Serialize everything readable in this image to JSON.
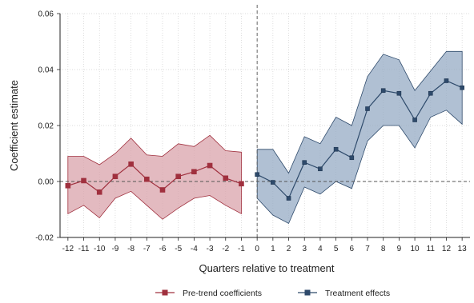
{
  "chart_data": {
    "type": "line",
    "title": "",
    "xlabel": "Quarters relative to treatment",
    "ylabel": "Coefficient estimate",
    "xlim": [
      -12.5,
      13.5
    ],
    "ylim": [
      -0.02,
      0.06
    ],
    "yticks": [
      "-0.02",
      "0.00",
      "0.02",
      "0.04",
      "0.06"
    ],
    "xticks": [
      "-12",
      "-11",
      "-10",
      "-9",
      "-8",
      "-7",
      "-6",
      "-5",
      "-4",
      "-3",
      "-2",
      "-1",
      "0",
      "1",
      "2",
      "3",
      "4",
      "5",
      "6",
      "7",
      "8",
      "9",
      "10",
      "11",
      "12",
      "13"
    ],
    "grid": true,
    "legend_position": "bottom",
    "reference_lines": {
      "vertical_x": 0,
      "horizontal_y": 0
    },
    "series": [
      {
        "name": "Pre-trend coefficients",
        "color": "#a0303e",
        "fill": "#d9a3ab",
        "marker": "square",
        "x": [
          -12,
          -11,
          -10,
          -9,
          -8,
          -7,
          -6,
          -5,
          -4,
          -3,
          -2,
          -1
        ],
        "y": [
          -0.0015,
          0.0003,
          -0.0038,
          0.0018,
          0.0062,
          0.0008,
          -0.003,
          0.0018,
          0.0035,
          0.0057,
          0.0012,
          -0.0008
        ],
        "ci_upper": [
          0.009,
          0.009,
          0.006,
          0.01,
          0.0155,
          0.0095,
          0.009,
          0.0135,
          0.0125,
          0.0165,
          0.011,
          0.0105
        ],
        "ci_lower": [
          -0.0115,
          -0.0085,
          -0.013,
          -0.006,
          -0.0035,
          -0.0085,
          -0.0135,
          -0.0095,
          -0.006,
          -0.005,
          -0.0085,
          -0.0115
        ]
      },
      {
        "name": "Treatment effects",
        "color": "#2e4a6b",
        "fill": "#95abc4",
        "marker": "square",
        "x": [
          0,
          1,
          2,
          3,
          4,
          5,
          6,
          7,
          8,
          9,
          10,
          11,
          12,
          13
        ],
        "y": [
          0.0025,
          -0.0003,
          -0.006,
          0.0068,
          0.0045,
          0.0115,
          0.0085,
          0.026,
          0.0325,
          0.0315,
          0.022,
          0.0315,
          0.036,
          0.0335
        ],
        "ci_upper": [
          0.0115,
          0.0115,
          0.003,
          0.016,
          0.0135,
          0.023,
          0.02,
          0.0375,
          0.0455,
          0.0435,
          0.0325,
          0.0395,
          0.0465,
          0.0465
        ],
        "ci_lower": [
          -0.006,
          -0.012,
          -0.015,
          -0.002,
          -0.0045,
          0.0,
          -0.0025,
          0.0145,
          0.02,
          0.02,
          0.012,
          0.023,
          0.0255,
          0.0205
        ]
      }
    ]
  }
}
